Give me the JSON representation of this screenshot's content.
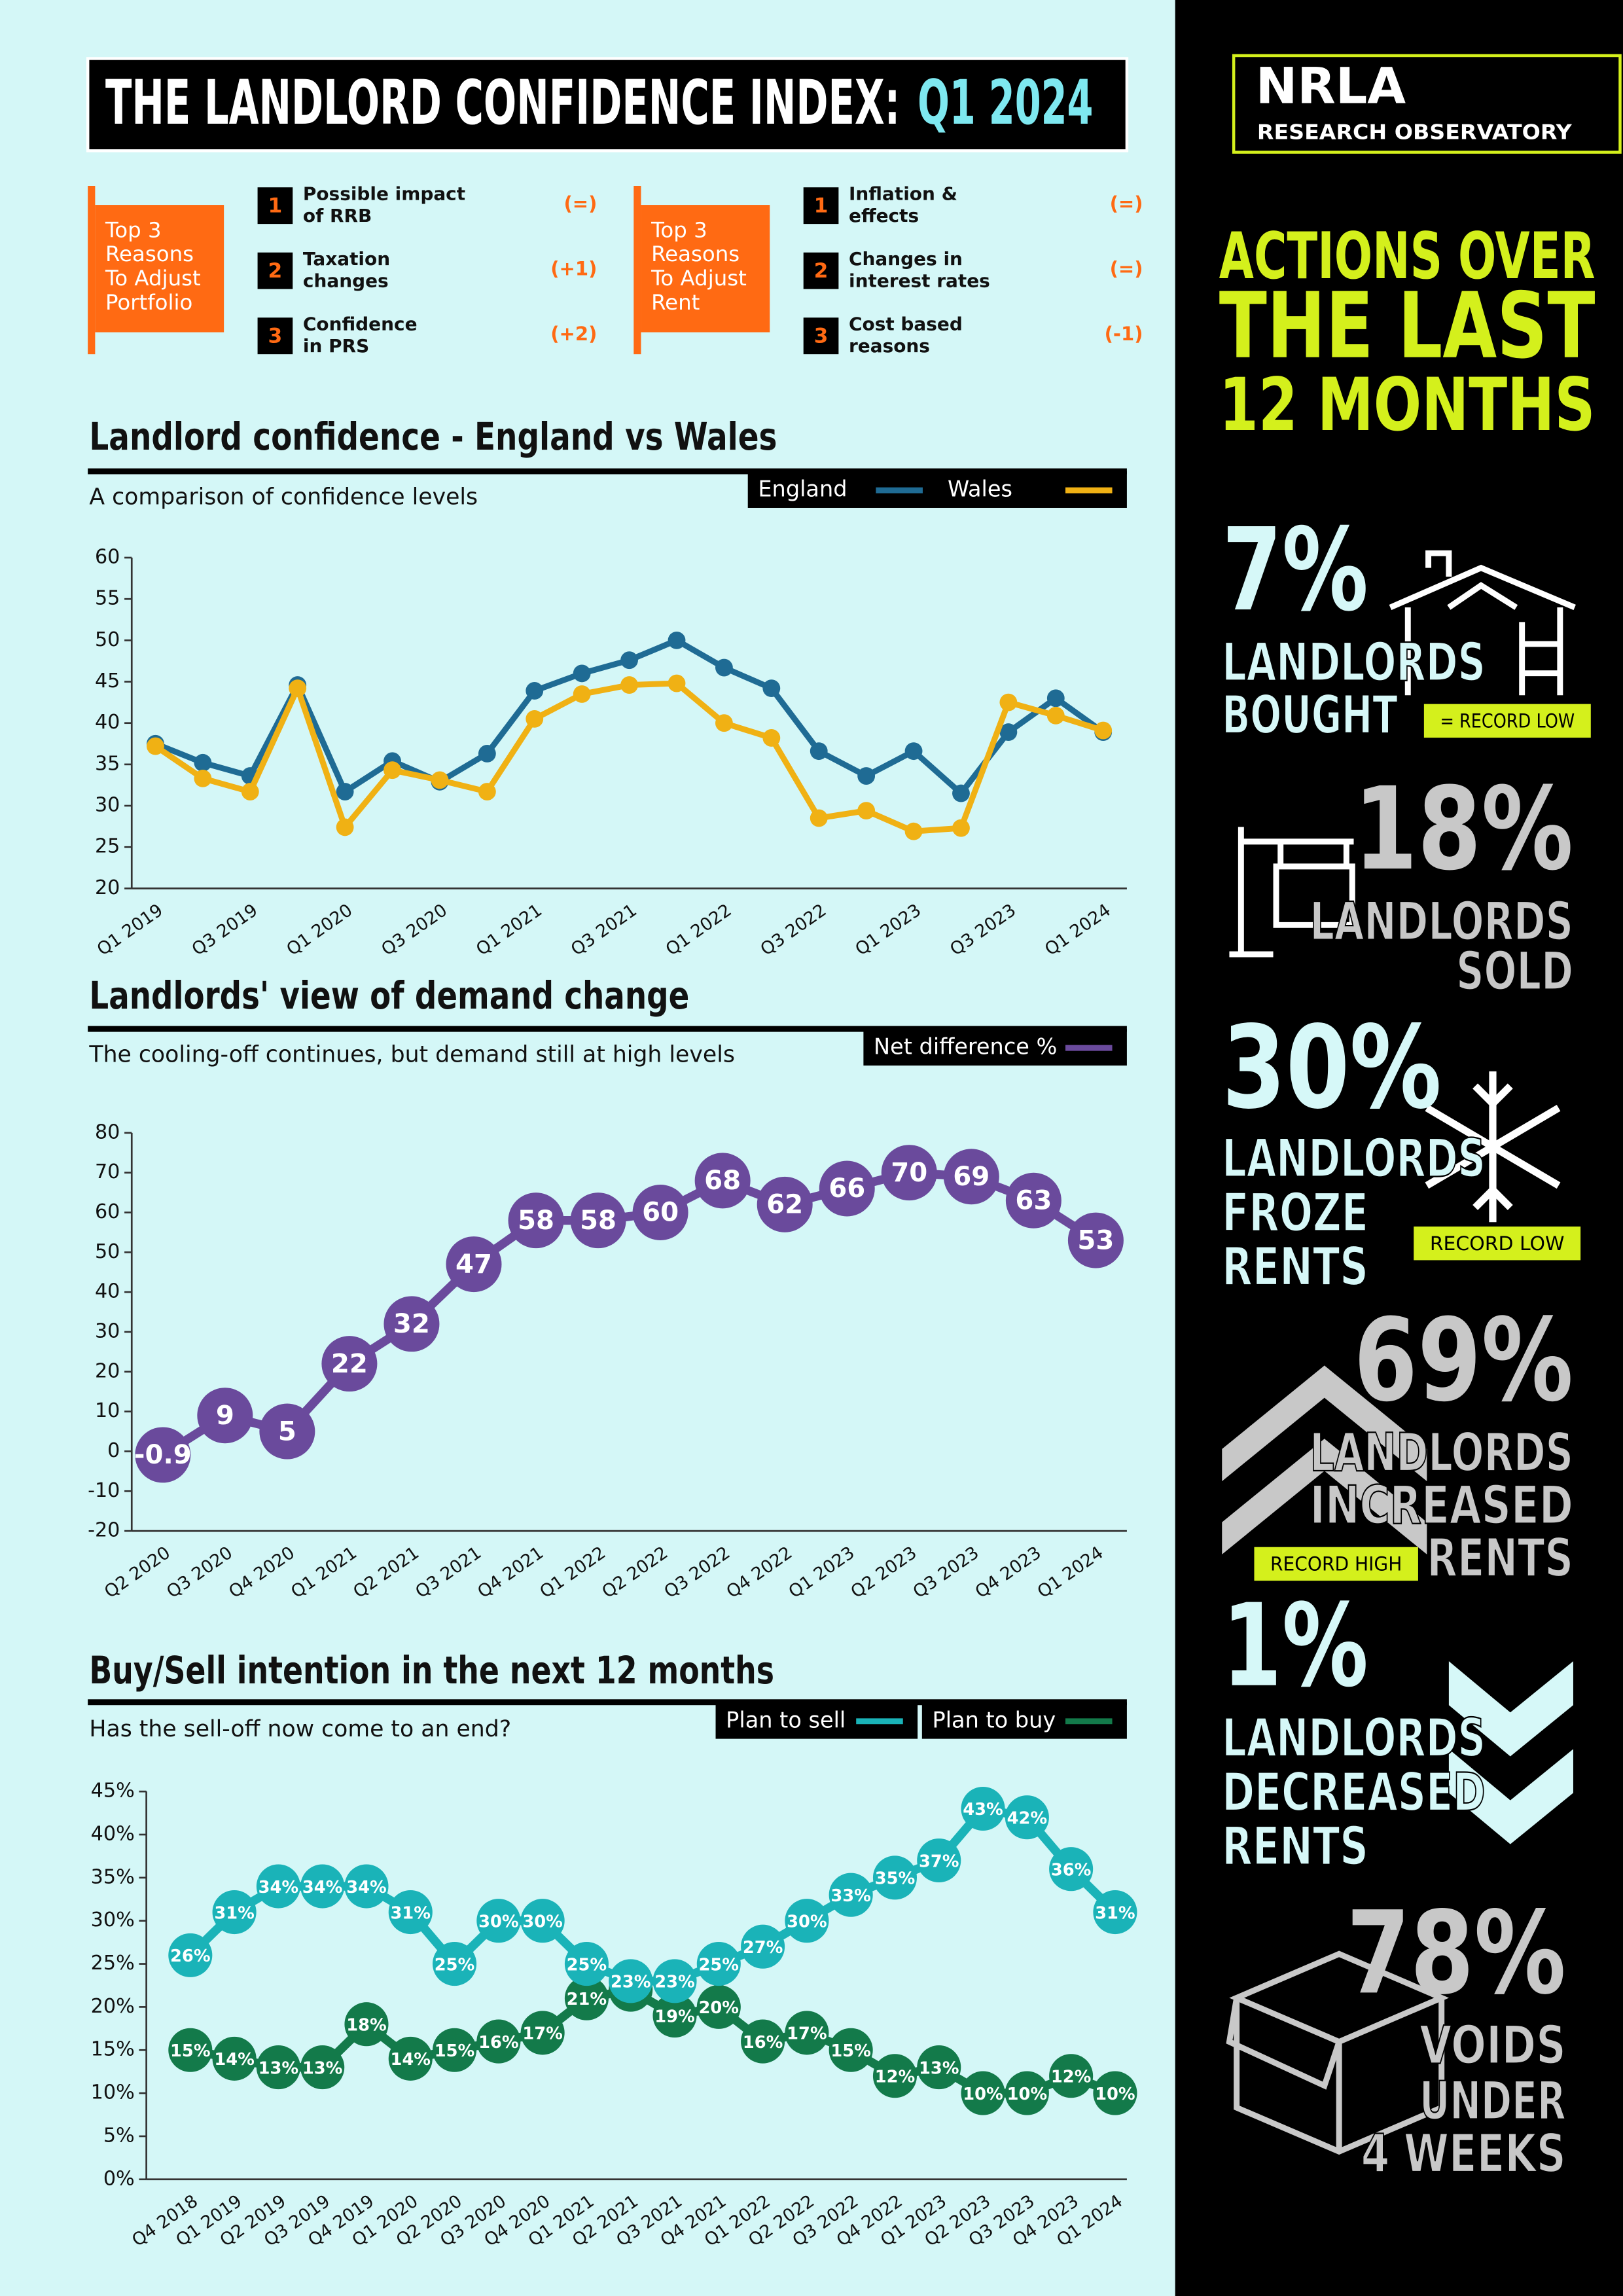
{
  "header": {
    "title": "THE LANDLORD CONFIDENCE INDEX:",
    "period": "Q1 2024"
  },
  "reason_panels": [
    {
      "heading": [
        "Top 3",
        "Reasons",
        "To Adjust",
        "Portfolio"
      ],
      "items": [
        {
          "rank": 1,
          "text": [
            "Possible impact",
            "of RRB"
          ],
          "change": "(=)"
        },
        {
          "rank": 2,
          "text": [
            "Taxation",
            "changes"
          ],
          "change": "(+1)"
        },
        {
          "rank": 3,
          "text": [
            "Confidence",
            "in PRS"
          ],
          "change": "(+2)"
        }
      ]
    },
    {
      "heading": [
        "Top 3",
        "Reasons",
        "To Adjust",
        "Rent"
      ],
      "items": [
        {
          "rank": 1,
          "text": [
            "Inflation &",
            "effects"
          ],
          "change": "(=)"
        },
        {
          "rank": 2,
          "text": [
            "Changes in",
            "interest rates"
          ],
          "change": "(=)"
        },
        {
          "rank": 3,
          "text": [
            "Cost based",
            "reasons"
          ],
          "change": "(-1)"
        }
      ]
    }
  ],
  "chart_data": [
    {
      "type": "line",
      "title": "Landlord confidence - England vs Wales",
      "subtitle": "A comparison of confidence levels",
      "categories": [
        "Q1 2019",
        null,
        "Q3 2019",
        null,
        "Q1 2020",
        null,
        "Q3 2020",
        null,
        "Q1 2021",
        null,
        "Q3 2021",
        null,
        "Q1 2022",
        null,
        "Q3 2022",
        null,
        "Q1 2023",
        null,
        "Q3 2023",
        null,
        "Q1 2024"
      ],
      "series": [
        {
          "name": "England",
          "color": "#1f6b94",
          "values": [
            37.5,
            35.2,
            33.6,
            44.6,
            31.7,
            35.4,
            32.9,
            36.3,
            43.9,
            46,
            47.6,
            50,
            46.7,
            44.2,
            36.6,
            33.6,
            36.6,
            31.5,
            38.9,
            43,
            38.9
          ]
        },
        {
          "name": "Wales",
          "color": "#f0b114",
          "values": [
            37.2,
            33.3,
            31.7,
            44.2,
            27.4,
            34.3,
            33.1,
            31.7,
            40.5,
            43.5,
            44.6,
            44.8,
            40,
            38.2,
            28.5,
            29.4,
            26.9,
            27.3,
            42.5,
            40.9,
            39.1
          ]
        }
      ],
      "ylim": [
        20,
        60
      ],
      "yticks": [
        20,
        25,
        30,
        35,
        40,
        45,
        50,
        55,
        60
      ],
      "legend": "top-right"
    },
    {
      "type": "line",
      "title": "Landlords' view of demand change",
      "subtitle": "The cooling-off continues, but demand still at high levels",
      "categories": [
        "Q2 2020",
        "Q3 2020",
        "Q4 2020",
        "Q1 2021",
        "Q2 2021",
        "Q3 2021",
        "Q4 2021",
        "Q1 2022",
        "Q2 2022",
        "Q3 2022",
        "Q4 2022",
        "Q1 2023",
        "Q2 2023",
        "Q3 2023",
        "Q4 2023",
        "Q1 2024"
      ],
      "series": [
        {
          "name": "Net difference %",
          "color": "#6a4a9c",
          "values": [
            -0.9,
            9,
            5,
            22,
            32,
            47,
            58,
            58,
            60,
            68,
            62,
            66,
            70,
            69,
            63,
            53
          ]
        }
      ],
      "ylim": [
        -20,
        80
      ],
      "yticks": [
        -20,
        -10,
        0,
        10,
        20,
        30,
        40,
        50,
        60,
        70,
        80
      ],
      "data_labels": true,
      "legend": "top-right"
    },
    {
      "type": "line",
      "title": "Buy/Sell intention in the next 12 months",
      "subtitle": "Has the sell-off now come to an end?",
      "categories": [
        "Q4 2018",
        "Q1 2019",
        "Q2 2019",
        "Q3 2019",
        "Q4 2019",
        "Q1 2020",
        "Q2 2020",
        "Q3 2020",
        "Q4 2020",
        "Q1 2021",
        "Q2 2021",
        "Q3 2021",
        "Q4 2021",
        "Q1 2022",
        "Q2 2022",
        "Q3 2022",
        "Q4 2022",
        "Q1 2023",
        "Q2 2023",
        "Q3 2023",
        "Q4 2023",
        "Q1 2024"
      ],
      "series": [
        {
          "name": "Plan to sell",
          "color": "#1ab3b8",
          "values": [
            26,
            31,
            34,
            34,
            34,
            31,
            25,
            30,
            30,
            25,
            23,
            23,
            25,
            27,
            30,
            33,
            35,
            37,
            43,
            42,
            36,
            31
          ],
          "value_labels": [
            "26%",
            "31%",
            "34%",
            "34%",
            "34%",
            "31%",
            "25%",
            "30%",
            "30%",
            "25%",
            "23%",
            "23%",
            "25%",
            "27%",
            "30%",
            "33%",
            "35%",
            "37%",
            "43%",
            "42%",
            "36%",
            "31%"
          ]
        },
        {
          "name": "Plan to buy",
          "color": "#137a4a",
          "values": [
            15,
            14,
            13,
            13,
            18,
            14,
            15,
            16,
            17,
            21,
            22,
            19,
            20,
            16,
            17,
            15,
            12,
            13,
            10,
            10,
            12,
            10
          ],
          "value_labels": [
            "15%",
            "14%",
            "13%",
            "13%",
            "18%",
            "14%",
            "15%",
            "16%",
            "17%",
            "21%",
            null,
            "19%",
            "20%",
            "16%",
            "17%",
            "15%",
            "12%",
            "13%",
            "10%",
            "10%",
            "12%",
            "10%"
          ]
        }
      ],
      "ylim": [
        0,
        45
      ],
      "yticks": [
        {
          "value": 0,
          "label": "0%"
        },
        {
          "value": 5,
          "label": "5%"
        },
        {
          "value": 10,
          "label": "10%"
        },
        {
          "value": 15,
          "label": "15%"
        },
        {
          "value": 20,
          "label": "20%"
        },
        {
          "value": 25,
          "label": "25%"
        },
        {
          "value": 30,
          "label": "30%"
        },
        {
          "value": 35,
          "label": "35%"
        },
        {
          "value": 40,
          "label": "40%"
        },
        {
          "value": 45,
          "label": "45%"
        }
      ],
      "data_labels": true,
      "legend": "top-right"
    }
  ],
  "sidebar": {
    "logo": "NRLA",
    "logo_subtitle": "RESEARCH OBSERVATORY",
    "heading": [
      "ACTIONS OVER",
      "THE LAST",
      "12 MONTHS"
    ],
    "stats": [
      {
        "figure": "7%",
        "lines": [
          "LANDLORDS",
          "BOUGHT"
        ],
        "badge": "= RECORD LOW"
      },
      {
        "figure": "18%",
        "lines": [
          "LANDLORDS",
          "SOLD"
        ]
      },
      {
        "figure": "30%",
        "lines": [
          "LANDLORDS",
          "FROZE",
          "RENTS"
        ],
        "badge": "RECORD LOW"
      },
      {
        "figure": "69%",
        "lines": [
          "LANDLORDS",
          "INCREASED",
          "RENTS"
        ],
        "badge": "RECORD HIGH"
      },
      {
        "figure": "1%",
        "lines": [
          "LANDLORDS",
          "DECREASED",
          "RENTS"
        ]
      },
      {
        "figure": "78%",
        "lines": [
          "VOIDS",
          "UNDER",
          "4 WEEKS"
        ]
      }
    ]
  }
}
